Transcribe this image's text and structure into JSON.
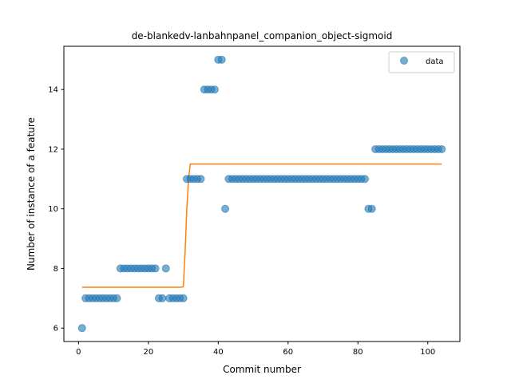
{
  "chart_data": {
    "type": "scatter",
    "title": "de-blankedv-lanbahnpanel_companion_object-sigmoid",
    "xlabel": "Commit number",
    "ylabel": "Number of instance of a feature",
    "xlim": [
      -4.2,
      109.2
    ],
    "ylim": [
      5.55,
      15.45
    ],
    "xticks": [
      0,
      20,
      40,
      60,
      80,
      100
    ],
    "yticks": [
      6,
      8,
      10,
      12,
      14
    ],
    "grid": false,
    "legend": {
      "position": "top-right",
      "entries": [
        "data"
      ]
    },
    "colors": {
      "data": "#1f77b4",
      "fit": "#ff7f0e"
    },
    "series": [
      {
        "name": "data",
        "kind": "scatter",
        "x": [
          1,
          2,
          3,
          4,
          5,
          6,
          7,
          8,
          9,
          10,
          11,
          12,
          13,
          14,
          15,
          16,
          17,
          18,
          19,
          20,
          21,
          22,
          23,
          24,
          25,
          26,
          27,
          28,
          29,
          30,
          31,
          32,
          33,
          34,
          35,
          36,
          37,
          38,
          39,
          40,
          41,
          42,
          43,
          44,
          45,
          46,
          47,
          48,
          49,
          50,
          51,
          52,
          53,
          54,
          55,
          56,
          57,
          58,
          59,
          60,
          61,
          62,
          63,
          64,
          65,
          66,
          67,
          68,
          69,
          70,
          71,
          72,
          73,
          74,
          75,
          76,
          77,
          78,
          79,
          80,
          81,
          82,
          83,
          84,
          85,
          86,
          87,
          88,
          89,
          90,
          91,
          92,
          93,
          94,
          95,
          96,
          97,
          98,
          99,
          100,
          101,
          102,
          103,
          104
        ],
        "y": [
          6,
          7,
          7,
          7,
          7,
          7,
          7,
          7,
          7,
          7,
          7,
          8,
          8,
          8,
          8,
          8,
          8,
          8,
          8,
          8,
          8,
          8,
          7,
          7,
          8,
          7,
          7,
          7,
          7,
          7,
          11,
          11,
          11,
          11,
          11,
          14,
          14,
          14,
          14,
          15,
          15,
          10,
          11,
          11,
          11,
          11,
          11,
          11,
          11,
          11,
          11,
          11,
          11,
          11,
          11,
          11,
          11,
          11,
          11,
          11,
          11,
          11,
          11,
          11,
          11,
          11,
          11,
          11,
          11,
          11,
          11,
          11,
          11,
          11,
          11,
          11,
          11,
          11,
          11,
          11,
          11,
          11,
          10,
          10,
          12,
          12,
          12,
          12,
          12,
          12,
          12,
          12,
          12,
          12,
          12,
          12,
          12,
          12,
          12,
          12,
          12,
          12,
          12,
          12
        ]
      },
      {
        "name": "",
        "kind": "line",
        "x": [
          1,
          28,
          29,
          30,
          30.5,
          31,
          31.5,
          32,
          40,
          60,
          80,
          104
        ],
        "y": [
          7.37,
          7.37,
          7.37,
          7.38,
          8.5,
          10.0,
          11.0,
          11.5,
          11.5,
          11.5,
          11.5,
          11.5
        ]
      }
    ]
  }
}
